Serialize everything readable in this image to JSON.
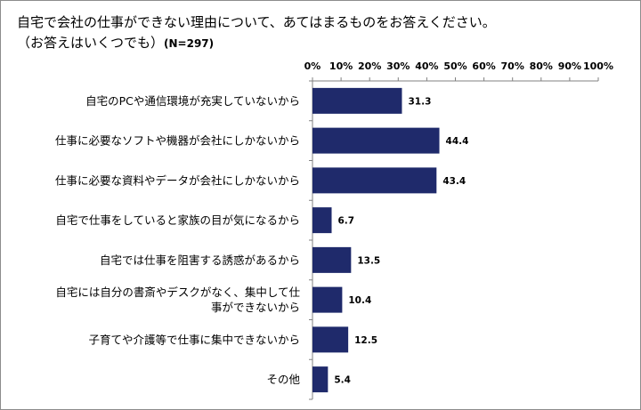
{
  "title": {
    "line1": "自宅で会社の仕事ができない理由について、あてはまるものをお答えください。",
    "line2": "（お答えはいくつでも）",
    "n": "(N=297)"
  },
  "chart_data": {
    "type": "bar",
    "orientation": "horizontal",
    "title": "自宅で会社の仕事ができない理由について、あてはまるものをお答えください。（お答えはいくつでも）(N=297)",
    "categories": [
      [
        "自宅のPCや通信環境が充実していないから"
      ],
      [
        "仕事に必要なソフトや機器が会社にしかないから"
      ],
      [
        "仕事に必要な資料やデータが会社にしかないから"
      ],
      [
        "自宅で仕事をしていると家族の目が気になるから"
      ],
      [
        "自宅では仕事を阻害する誘惑があるから"
      ],
      [
        "自宅には自分の書斎やデスクがなく、集中して仕",
        "事ができないから"
      ],
      [
        "子育てや介護等で仕事に集中できないから"
      ],
      [
        "その他"
      ]
    ],
    "values": [
      31.3,
      44.4,
      43.4,
      6.7,
      13.5,
      10.4,
      12.5,
      5.4
    ],
    "value_labels": [
      "31.3",
      "44.4",
      "43.4",
      "6.7",
      "13.5",
      "10.4",
      "12.5",
      "5.4"
    ],
    "xlim": [
      0,
      100
    ],
    "x_ticks": [
      "0%",
      "10%",
      "20%",
      "30%",
      "40%",
      "50%",
      "60%",
      "70%",
      "80%",
      "90%",
      "100%"
    ],
    "x_axis_position": "top",
    "bar_color": "#1f2a6b",
    "grid": false,
    "legend": "none"
  }
}
